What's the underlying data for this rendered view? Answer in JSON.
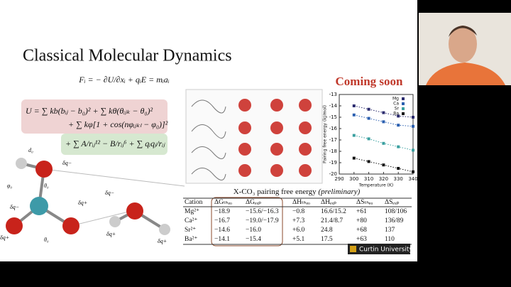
{
  "slide": {
    "title": "Classical Molecular Dynamics",
    "force_equation": "Fᵢ = − ∂U/∂xᵢ + qᵢE = mᵢaᵢ",
    "potential_bonded": "U = ∑ kb(bᵢⱼ − b₀)² + ∑ kθ(θᵢⱼₖ − θ₀)²",
    "potential_torsion": "+ ∑ kφ[1 + cos(nφᵢⱼₖₗ − φ₀)]²",
    "potential_nonbonded": "+ ∑ A/rᵢⱼ¹² − B/rᵢⱼ⁶ + ∑ qᵢqⱼ/rᵢⱼ",
    "molecule_labels": [
      "d₀",
      "δq−",
      "δq−",
      "δq+",
      "δq+",
      "θ₀",
      "φ₀",
      "θ₀",
      "δq−",
      "δq+",
      "δq+"
    ],
    "coming_soon": "Coming soon",
    "plot": {
      "xlabel": "Temperature (K)",
      "ylabel": "Pairing free energy (kJ/mol)",
      "xlim": [
        290,
        340
      ],
      "ylim": [
        -20,
        -13
      ],
      "xticks": [
        290,
        300,
        310,
        320,
        330,
        340
      ],
      "yticks": [
        -13,
        -14,
        -15,
        -16,
        -17,
        -18,
        -19,
        -20
      ],
      "x": [
        300,
        310,
        320,
        330,
        340
      ],
      "series": [
        {
          "name": "Mg",
          "color": "#2b2b6e",
          "values": [
            -14.0,
            -14.3,
            -14.6,
            -14.9,
            -15.0
          ]
        },
        {
          "name": "Ca",
          "color": "#2a5fb0",
          "values": [
            -14.8,
            -15.1,
            -15.4,
            -15.7,
            -15.8
          ]
        },
        {
          "name": "Sr",
          "color": "#3aa0a0",
          "values": [
            -16.6,
            -16.9,
            -17.3,
            -17.6,
            -17.9
          ]
        },
        {
          "name": "Ba",
          "color": "#111111",
          "values": [
            -18.6,
            -18.9,
            -19.2,
            -19.5,
            -19.8
          ]
        }
      ]
    },
    "table": {
      "caption": "X-CO₃ pairing free energy",
      "caption_note": "(preliminary)",
      "header": [
        "Cation",
        "ΔGₜₕₑₒ",
        "ΔGₑₓₚ",
        "ΔHₜₕₑₒ",
        "ΔHₑₓₚ",
        "ΔSₜₕₑₒ",
        "ΔSₑₓₚ"
      ],
      "rows": [
        [
          "Mg²⁺",
          "−18.9",
          "−15.6/−16.3",
          "−0.8",
          "16.6/15.2",
          "+61",
          "108/106"
        ],
        [
          "Ca²⁺",
          "−16.7",
          "−19.0/−17.9",
          "+7.3",
          "21.4/8.7",
          "+80",
          "136/89"
        ],
        [
          "Sr²⁺",
          "−14.6",
          "−16.0",
          "+6.0",
          "24.8",
          "+68",
          "137"
        ],
        [
          "Ba²⁺",
          "−14.1",
          "−15.4",
          "+5.1",
          "17.5",
          "+63",
          "110"
        ]
      ]
    },
    "logo": "Curtin University"
  }
}
